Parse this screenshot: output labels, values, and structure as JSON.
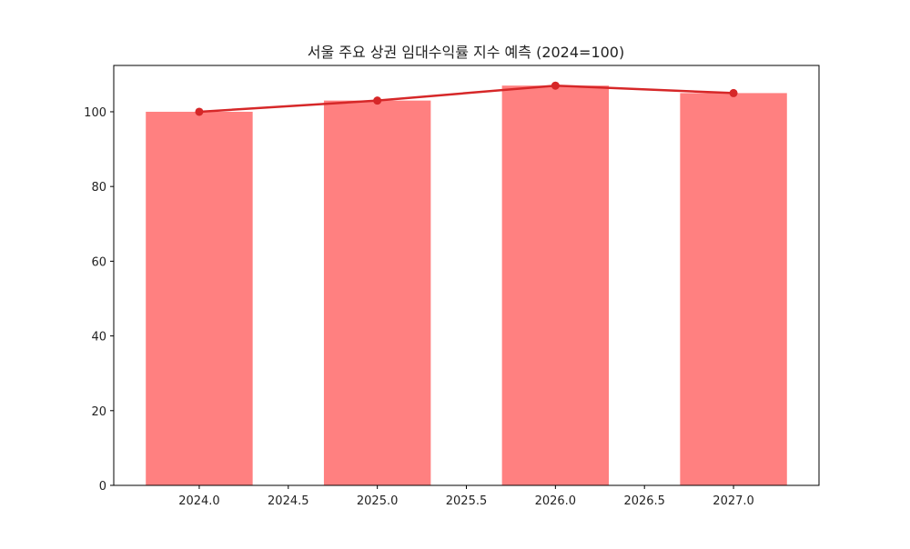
{
  "chart_data": {
    "type": "bar",
    "title": "서울 주요 상권 임대수익률 지수 예측 (2024=100)",
    "xlabel": "",
    "ylabel": "",
    "x": [
      2024,
      2025,
      2026,
      2027
    ],
    "series": [
      {
        "type": "bar",
        "values": [
          100,
          103,
          107,
          105
        ],
        "color": "#ff8080"
      },
      {
        "type": "line",
        "values": [
          100,
          103,
          107,
          105
        ],
        "color": "#d62728",
        "marker": "circle"
      }
    ],
    "xlim": [
      2023.52,
      2027.48
    ],
    "ylim": [
      0,
      112.4
    ],
    "xticks": [
      "2024.0",
      "2024.5",
      "2025.0",
      "2025.5",
      "2026.0",
      "2026.5",
      "2027.0"
    ],
    "yticks": [
      "0",
      "20",
      "40",
      "60",
      "80",
      "100"
    ],
    "grid": false,
    "legend": "none"
  }
}
